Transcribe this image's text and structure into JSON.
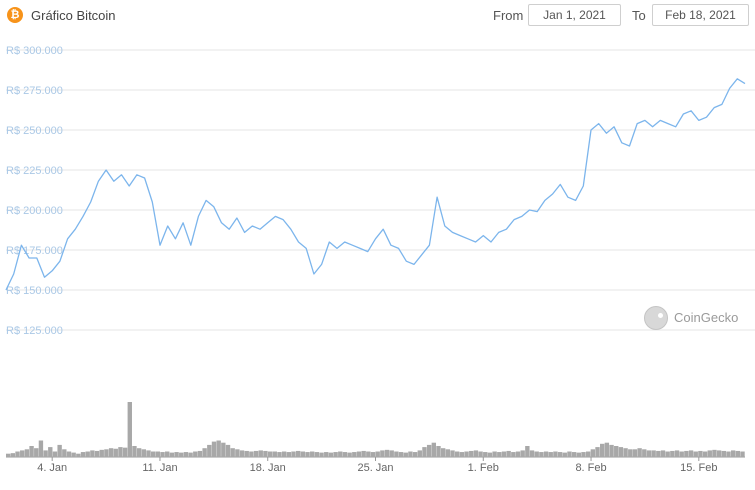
{
  "header": {
    "logo_glyph": "₿",
    "title": "Gráfico Bitcoin",
    "from_label": "From",
    "from_value": "Jan 1, 2021",
    "to_label": "To",
    "to_value": "Feb 18, 2021"
  },
  "watermark": {
    "text": "CoinGecko"
  },
  "colors": {
    "line": "#7cb5ec",
    "grid": "#e6e6e6",
    "volume": "#a8a8a8",
    "axis_text": "#666666",
    "ytick_text": "#aac8e6",
    "logo": "#f7931a"
  },
  "chart_data": {
    "type": "line",
    "title": "Gráfico Bitcoin",
    "xlabel": "",
    "ylabel": "",
    "ylim": [
      125000,
      300000
    ],
    "xlim": [
      "2021-01-01",
      "2021-02-18"
    ],
    "yticks": [
      "R$ 300.000",
      "R$ 275.000",
      "R$ 250.000",
      "R$ 225.000",
      "R$ 200.000",
      "R$ 175.000",
      "R$ 150.000",
      "R$ 125.000"
    ],
    "ytick_values": [
      300000,
      275000,
      250000,
      225000,
      200000,
      175000,
      150000,
      125000
    ],
    "xticks": [
      "4. Jan",
      "11. Jan",
      "18. Jan",
      "25. Jan",
      "1. Feb",
      "8. Feb",
      "15. Feb"
    ],
    "xtick_dates": [
      "2021-01-04",
      "2021-01-11",
      "2021-01-18",
      "2021-01-25",
      "2021-02-01",
      "2021-02-08",
      "2021-02-15"
    ],
    "grid": true,
    "series": [
      {
        "values": [
          [
            "2021-01-01",
            150000
          ],
          [
            "2021-01-01T12:00",
            160000
          ],
          [
            "2021-01-02",
            178000
          ],
          [
            "2021-01-02T12:00",
            170000
          ],
          [
            "2021-01-03",
            170000
          ],
          [
            "2021-01-03T12:00",
            158000
          ],
          [
            "2021-01-04",
            162000
          ],
          [
            "2021-01-04T12:00",
            168000
          ],
          [
            "2021-01-05",
            182000
          ],
          [
            "2021-01-05T12:00",
            188000
          ],
          [
            "2021-01-06",
            196000
          ],
          [
            "2021-01-06T12:00",
            205000
          ],
          [
            "2021-01-07",
            218000
          ],
          [
            "2021-01-07T12:00",
            225000
          ],
          [
            "2021-01-08",
            218000
          ],
          [
            "2021-01-08T12:00",
            222000
          ],
          [
            "2021-01-09",
            215000
          ],
          [
            "2021-01-09T12:00",
            222000
          ],
          [
            "2021-01-10",
            220000
          ],
          [
            "2021-01-10T12:00",
            205000
          ],
          [
            "2021-01-11",
            178000
          ],
          [
            "2021-01-11T12:00",
            190000
          ],
          [
            "2021-01-12",
            182000
          ],
          [
            "2021-01-12T12:00",
            192000
          ],
          [
            "2021-01-13",
            178000
          ],
          [
            "2021-01-13T12:00",
            196000
          ],
          [
            "2021-01-14",
            206000
          ],
          [
            "2021-01-14T12:00",
            202000
          ],
          [
            "2021-01-15",
            192000
          ],
          [
            "2021-01-15T12:00",
            188000
          ],
          [
            "2021-01-16",
            195000
          ],
          [
            "2021-01-16T12:00",
            186000
          ],
          [
            "2021-01-17",
            190000
          ],
          [
            "2021-01-17T12:00",
            188000
          ],
          [
            "2021-01-18",
            192000
          ],
          [
            "2021-01-18T12:00",
            196000
          ],
          [
            "2021-01-19",
            194000
          ],
          [
            "2021-01-19T12:00",
            188000
          ],
          [
            "2021-01-20",
            180000
          ],
          [
            "2021-01-20T12:00",
            176000
          ],
          [
            "2021-01-21",
            160000
          ],
          [
            "2021-01-21T12:00",
            166000
          ],
          [
            "2021-01-22",
            180000
          ],
          [
            "2021-01-22T12:00",
            176000
          ],
          [
            "2021-01-23",
            180000
          ],
          [
            "2021-01-23T12:00",
            178000
          ],
          [
            "2021-01-24",
            176000
          ],
          [
            "2021-01-24T12:00",
            174000
          ],
          [
            "2021-01-25",
            182000
          ],
          [
            "2021-01-25T12:00",
            188000
          ],
          [
            "2021-01-26",
            178000
          ],
          [
            "2021-01-26T12:00",
            176000
          ],
          [
            "2021-01-27",
            168000
          ],
          [
            "2021-01-27T12:00",
            166000
          ],
          [
            "2021-01-28",
            172000
          ],
          [
            "2021-01-28T12:00",
            178000
          ],
          [
            "2021-01-29",
            208000
          ],
          [
            "2021-01-29T12:00",
            190000
          ],
          [
            "2021-01-30",
            186000
          ],
          [
            "2021-01-30T12:00",
            184000
          ],
          [
            "2021-01-31",
            182000
          ],
          [
            "2021-01-31T12:00",
            180000
          ],
          [
            "2021-02-01",
            184000
          ],
          [
            "2021-02-01T12:00",
            180000
          ],
          [
            "2021-02-02",
            186000
          ],
          [
            "2021-02-02T12:00",
            188000
          ],
          [
            "2021-02-03",
            194000
          ],
          [
            "2021-02-03T12:00",
            196000
          ],
          [
            "2021-02-04",
            200000
          ],
          [
            "2021-02-04T12:00",
            199000
          ],
          [
            "2021-02-05",
            206000
          ],
          [
            "2021-02-05T12:00",
            210000
          ],
          [
            "2021-02-06",
            216000
          ],
          [
            "2021-02-06T12:00",
            208000
          ],
          [
            "2021-02-07",
            206000
          ],
          [
            "2021-02-07T12:00",
            215000
          ],
          [
            "2021-02-08",
            250000
          ],
          [
            "2021-02-08T12:00",
            254000
          ],
          [
            "2021-02-09",
            248000
          ],
          [
            "2021-02-09T12:00",
            252000
          ],
          [
            "2021-02-10",
            242000
          ],
          [
            "2021-02-10T12:00",
            240000
          ],
          [
            "2021-02-11",
            254000
          ],
          [
            "2021-02-11T12:00",
            256000
          ],
          [
            "2021-02-12",
            252000
          ],
          [
            "2021-02-12T12:00",
            256000
          ],
          [
            "2021-02-13",
            254000
          ],
          [
            "2021-02-13T12:00",
            252000
          ],
          [
            "2021-02-14",
            260000
          ],
          [
            "2021-02-14T12:00",
            262000
          ],
          [
            "2021-02-15",
            256000
          ],
          [
            "2021-02-15T12:00",
            258000
          ],
          [
            "2021-02-16",
            264000
          ],
          [
            "2021-02-16T12:00",
            266000
          ],
          [
            "2021-02-17",
            276000
          ],
          [
            "2021-02-17T12:00",
            282000
          ],
          [
            "2021-02-18",
            279000
          ]
        ]
      }
    ],
    "volume": {
      "values": [
        0.06,
        0.07,
        0.1,
        0.12,
        0.14,
        0.2,
        0.16,
        0.3,
        0.12,
        0.18,
        0.1,
        0.22,
        0.14,
        0.1,
        0.08,
        0.06,
        0.09,
        0.1,
        0.12,
        0.11,
        0.13,
        0.14,
        0.16,
        0.15,
        0.18,
        0.17,
        1.0,
        0.2,
        0.16,
        0.14,
        0.12,
        0.1,
        0.1,
        0.09,
        0.1,
        0.08,
        0.09,
        0.08,
        0.09,
        0.08,
        0.1,
        0.11,
        0.16,
        0.22,
        0.28,
        0.3,
        0.26,
        0.22,
        0.16,
        0.14,
        0.12,
        0.11,
        0.1,
        0.11,
        0.12,
        0.11,
        0.1,
        0.1,
        0.09,
        0.1,
        0.09,
        0.1,
        0.11,
        0.1,
        0.09,
        0.1,
        0.09,
        0.08,
        0.09,
        0.08,
        0.09,
        0.1,
        0.09,
        0.08,
        0.09,
        0.1,
        0.11,
        0.1,
        0.09,
        0.1,
        0.12,
        0.13,
        0.12,
        0.1,
        0.09,
        0.08,
        0.1,
        0.09,
        0.12,
        0.18,
        0.22,
        0.26,
        0.2,
        0.16,
        0.14,
        0.12,
        0.1,
        0.09,
        0.1,
        0.11,
        0.12,
        0.1,
        0.09,
        0.08,
        0.1,
        0.09,
        0.1,
        0.11,
        0.09,
        0.1,
        0.12,
        0.2,
        0.12,
        0.1,
        0.09,
        0.1,
        0.09,
        0.1,
        0.09,
        0.08,
        0.1,
        0.09,
        0.08,
        0.09,
        0.1,
        0.14,
        0.18,
        0.24,
        0.26,
        0.22,
        0.2,
        0.18,
        0.16,
        0.14,
        0.14,
        0.16,
        0.14,
        0.12,
        0.12,
        0.11,
        0.12,
        0.1,
        0.11,
        0.12,
        0.1,
        0.11,
        0.12,
        0.1,
        0.11,
        0.1,
        0.12,
        0.13,
        0.12,
        0.11,
        0.1,
        0.12,
        0.11,
        0.1
      ]
    }
  }
}
